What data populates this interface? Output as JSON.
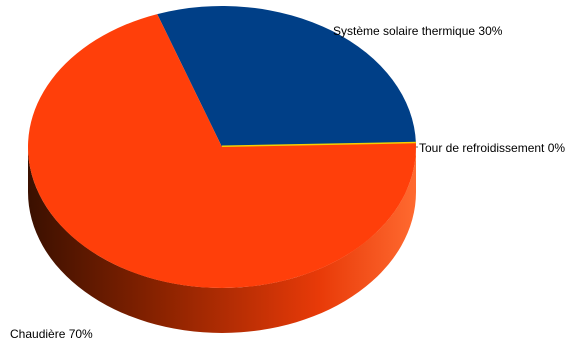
{
  "chart_data": {
    "type": "pie",
    "style": "3d",
    "slices": [
      {
        "label": "Système solaire thermique",
        "value": 30,
        "label_text": "Système solaire thermique 30%",
        "color": "#003F87",
        "side_color": "#002A5C"
      },
      {
        "label": "Tour de refroidissement",
        "value": 0,
        "label_text": "Tour de refroidissement 0%",
        "color": "#F5D000",
        "side_color": "#C8A800"
      },
      {
        "label": "Chaudière",
        "value": 70,
        "label_text": "Chaudière 70%",
        "color": "#FF3F0A",
        "side_color": "#8C1E00"
      }
    ],
    "title": "",
    "legend": "none"
  }
}
